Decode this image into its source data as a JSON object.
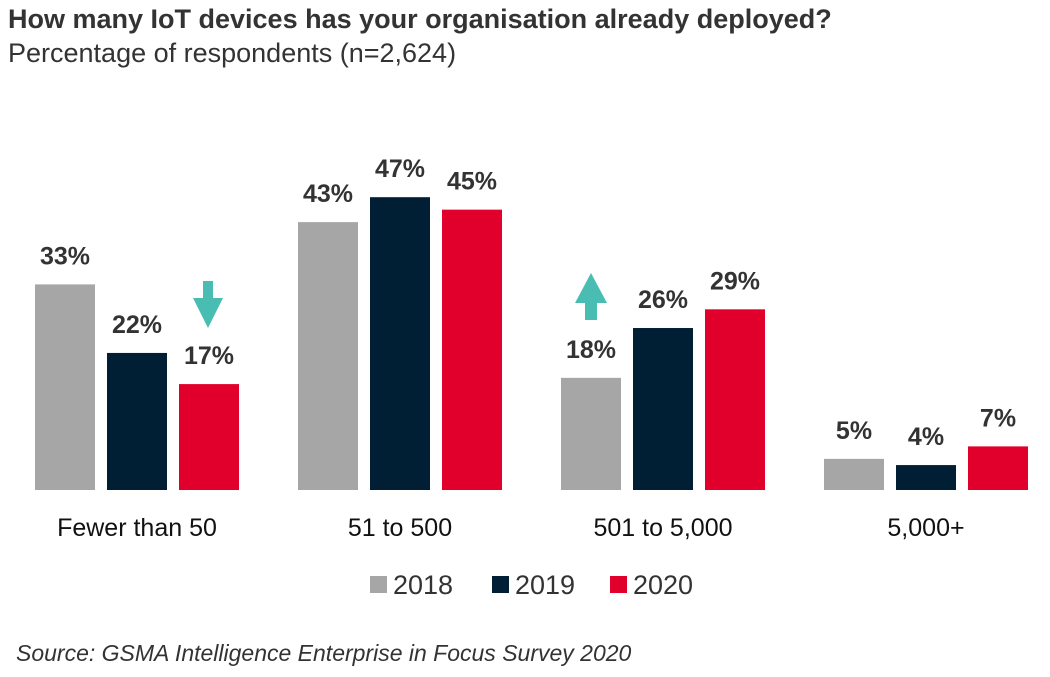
{
  "chart_data": {
    "type": "bar",
    "title": "How many IoT devices has your organisation already deployed?",
    "subtitle": "Percentage of respondents (n=2,624)",
    "xlabel": "",
    "ylabel": "",
    "ylim": [
      0,
      50
    ],
    "grid": false,
    "legend_position": "bottom",
    "categories": [
      "Fewer than 50",
      "51 to 500",
      "501 to 5,000",
      "5,000+"
    ],
    "series": [
      {
        "name": "2018",
        "color": "#A6A6A6",
        "values": [
          33,
          43,
          18,
          5
        ],
        "labels": [
          "33%",
          "43%",
          "18%",
          "5%"
        ]
      },
      {
        "name": "2019",
        "color": "#001E34",
        "values": [
          22,
          47,
          26,
          4
        ],
        "labels": [
          "22%",
          "47%",
          "26%",
          "4%"
        ]
      },
      {
        "name": "2020",
        "color": "#E0002B",
        "values": [
          17,
          45,
          29,
          7
        ],
        "labels": [
          "17%",
          "45%",
          "29%",
          "7%"
        ]
      }
    ],
    "annotations": [
      {
        "type": "arrow-down",
        "category": "Fewer than 50",
        "color": "#4ABDB3"
      },
      {
        "type": "arrow-up",
        "category": "501 to 5,000",
        "color": "#4ABDB3"
      }
    ],
    "source": "Source: GSMA Intelligence Enterprise in Focus Survey 2020"
  }
}
